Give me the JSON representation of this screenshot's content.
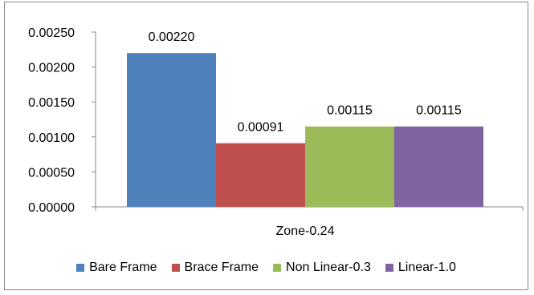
{
  "chart_data": {
    "type": "bar",
    "categories": [
      "Zone-0.24"
    ],
    "series": [
      {
        "name": "Bare Frame",
        "values": [
          0.0022
        ],
        "label": "0.00220",
        "color": "#4f81bd"
      },
      {
        "name": "Brace Frame",
        "values": [
          0.00091
        ],
        "label": "0.00091",
        "color": "#c0504d"
      },
      {
        "name": "Non Linear-0.3",
        "values": [
          0.00115
        ],
        "label": "0.00115",
        "color": "#9bbb59"
      },
      {
        "name": "Linear-1.0",
        "values": [
          0.00115
        ],
        "label": "0.00115",
        "color": "#8064a2"
      }
    ],
    "ylim": [
      0,
      0.0025
    ],
    "yticks": [
      "0.00000",
      "0.00050",
      "0.00100",
      "0.00150",
      "0.00200",
      "0.00250"
    ],
    "xlabel": "",
    "ylabel": "",
    "title": "",
    "grid": false,
    "legend": "bottom"
  }
}
